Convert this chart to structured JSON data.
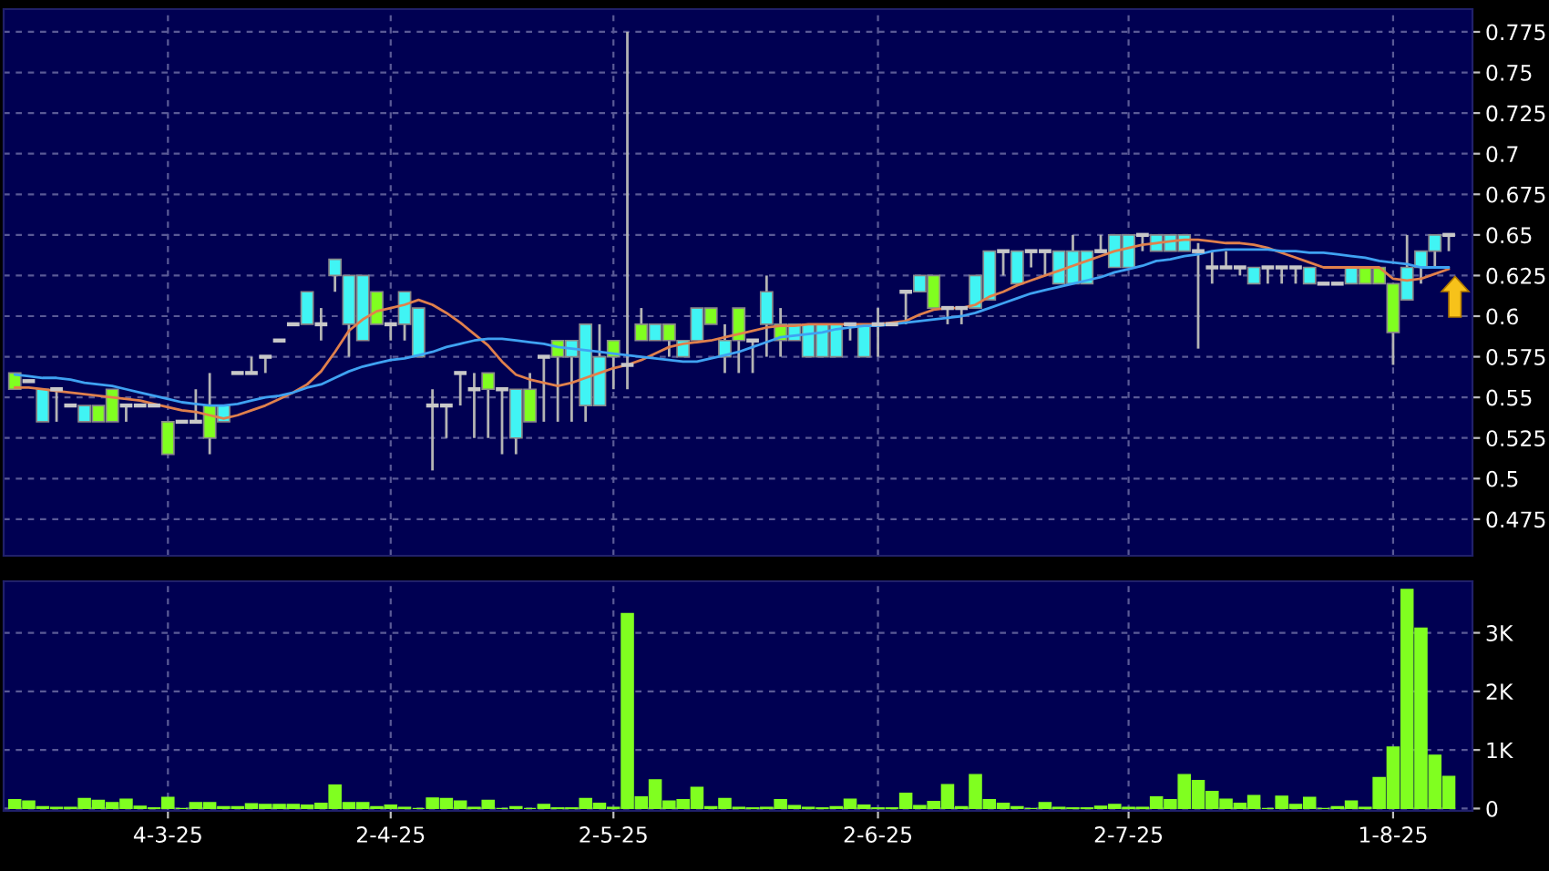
{
  "chart_data": [
    {
      "type": "candlestick",
      "categories": [
        null,
        null,
        null,
        null,
        null,
        null,
        null,
        null,
        null,
        null,
        null,
        null,
        null,
        null,
        null,
        null,
        null,
        null,
        null,
        null,
        null,
        null,
        null,
        null,
        null,
        null,
        null,
        null,
        null,
        null,
        null,
        null,
        null,
        null,
        null,
        null,
        null,
        null,
        null,
        null,
        null,
        null,
        null,
        null,
        null,
        null,
        null,
        null,
        null,
        null,
        null,
        null,
        null,
        null,
        null,
        null,
        null,
        null,
        null,
        null,
        null,
        null,
        null,
        null,
        null,
        null,
        null,
        null,
        null,
        null,
        null,
        null,
        null,
        null,
        null,
        null,
        null,
        null,
        null,
        null,
        null,
        null,
        null,
        null,
        null,
        null,
        null,
        null,
        null,
        null,
        null,
        null,
        null,
        null,
        null,
        null,
        null,
        null,
        null,
        null,
        null,
        null,
        null,
        null
      ],
      "ohlc": [
        [
          0.565,
          0.565,
          0.555,
          0.555
        ],
        [
          0.56,
          0.56,
          0.56,
          0.56
        ],
        [
          0.535,
          0.555,
          0.535,
          0.555
        ],
        [
          0.555,
          0.555,
          0.535,
          0.555
        ],
        [
          0.545,
          0.545,
          0.545,
          0.545
        ],
        [
          0.535,
          0.545,
          0.535,
          0.545
        ],
        [
          0.545,
          0.545,
          0.535,
          0.535
        ],
        [
          0.555,
          0.555,
          0.535,
          0.535
        ],
        [
          0.545,
          0.545,
          0.535,
          0.545
        ],
        [
          0.545,
          0.545,
          0.545,
          0.545
        ],
        [
          0.545,
          0.545,
          0.545,
          0.545
        ],
        [
          0.535,
          0.535,
          0.515,
          0.515
        ],
        [
          0.535,
          0.535,
          0.535,
          0.535
        ],
        [
          0.535,
          0.555,
          0.535,
          0.535
        ],
        [
          0.545,
          0.565,
          0.515,
          0.525
        ],
        [
          0.535,
          0.545,
          0.535,
          0.545
        ],
        [
          0.565,
          0.565,
          0.565,
          0.565
        ],
        [
          0.565,
          0.575,
          0.565,
          0.565
        ],
        [
          0.575,
          0.575,
          0.565,
          0.575
        ],
        [
          0.585,
          0.585,
          0.585,
          0.585
        ],
        [
          0.595,
          0.595,
          0.595,
          0.595
        ],
        [
          0.595,
          0.615,
          0.595,
          0.615
        ],
        [
          0.595,
          0.605,
          0.585,
          0.595
        ],
        [
          0.625,
          0.635,
          0.615,
          0.635
        ],
        [
          0.595,
          0.625,
          0.575,
          0.625
        ],
        [
          0.585,
          0.625,
          0.585,
          0.625
        ],
        [
          0.615,
          0.615,
          0.595,
          0.595
        ],
        [
          0.595,
          0.595,
          0.585,
          0.595
        ],
        [
          0.595,
          0.615,
          0.585,
          0.615
        ],
        [
          0.575,
          0.605,
          0.575,
          0.605
        ],
        [
          0.545,
          0.555,
          0.505,
          0.545
        ],
        [
          0.545,
          0.545,
          0.525,
          0.545
        ],
        [
          0.565,
          0.565,
          0.545,
          0.565
        ],
        [
          0.555,
          0.565,
          0.525,
          0.555
        ],
        [
          0.565,
          0.565,
          0.525,
          0.555
        ],
        [
          0.555,
          0.555,
          0.515,
          0.555
        ],
        [
          0.525,
          0.555,
          0.515,
          0.555
        ],
        [
          0.555,
          0.565,
          0.535,
          0.535
        ],
        [
          0.575,
          0.575,
          0.535,
          0.575
        ],
        [
          0.585,
          0.585,
          0.535,
          0.575
        ],
        [
          0.575,
          0.585,
          0.535,
          0.585
        ],
        [
          0.545,
          0.595,
          0.535,
          0.595
        ],
        [
          0.545,
          0.595,
          0.545,
          0.575
        ],
        [
          0.585,
          0.585,
          0.555,
          0.575
        ],
        [
          0.57,
          0.775,
          0.555,
          0.57
        ],
        [
          0.595,
          0.605,
          0.585,
          0.585
        ],
        [
          0.585,
          0.595,
          0.585,
          0.595
        ],
        [
          0.595,
          0.595,
          0.575,
          0.585
        ],
        [
          0.575,
          0.585,
          0.575,
          0.585
        ],
        [
          0.585,
          0.605,
          0.585,
          0.605
        ],
        [
          0.605,
          0.605,
          0.595,
          0.595
        ],
        [
          0.575,
          0.595,
          0.565,
          0.585
        ],
        [
          0.605,
          0.605,
          0.565,
          0.585
        ],
        [
          0.585,
          0.585,
          0.565,
          0.585
        ],
        [
          0.595,
          0.625,
          0.575,
          0.615
        ],
        [
          0.595,
          0.605,
          0.575,
          0.585
        ],
        [
          0.585,
          0.595,
          0.585,
          0.595
        ],
        [
          0.575,
          0.595,
          0.575,
          0.595
        ],
        [
          0.575,
          0.595,
          0.575,
          0.595
        ],
        [
          0.575,
          0.595,
          0.575,
          0.595
        ],
        [
          0.595,
          0.595,
          0.585,
          0.595
        ],
        [
          0.575,
          0.595,
          0.575,
          0.595
        ],
        [
          0.595,
          0.605,
          0.575,
          0.595
        ],
        [
          0.595,
          0.595,
          0.595,
          0.595
        ],
        [
          0.615,
          0.615,
          0.595,
          0.615
        ],
        [
          0.615,
          0.625,
          0.615,
          0.625
        ],
        [
          0.625,
          0.625,
          0.605,
          0.605
        ],
        [
          0.605,
          0.605,
          0.595,
          0.605
        ],
        [
          0.605,
          0.605,
          0.595,
          0.605
        ],
        [
          0.605,
          0.625,
          0.605,
          0.625
        ],
        [
          0.61,
          0.64,
          0.61,
          0.64
        ],
        [
          0.64,
          0.64,
          0.625,
          0.64
        ],
        [
          0.62,
          0.64,
          0.62,
          0.64
        ],
        [
          0.64,
          0.64,
          0.63,
          0.64
        ],
        [
          0.64,
          0.64,
          0.625,
          0.64
        ],
        [
          0.62,
          0.64,
          0.62,
          0.64
        ],
        [
          0.62,
          0.65,
          0.62,
          0.64
        ],
        [
          0.62,
          0.64,
          0.62,
          0.64
        ],
        [
          0.64,
          0.65,
          0.64,
          0.64
        ],
        [
          0.63,
          0.65,
          0.63,
          0.65
        ],
        [
          0.63,
          0.65,
          0.63,
          0.65
        ],
        [
          0.65,
          0.65,
          0.64,
          0.65
        ],
        [
          0.64,
          0.65,
          0.64,
          0.65
        ],
        [
          0.64,
          0.65,
          0.64,
          0.65
        ],
        [
          0.64,
          0.65,
          0.64,
          0.65
        ],
        [
          0.64,
          0.645,
          0.58,
          0.64
        ],
        [
          0.63,
          0.64,
          0.62,
          0.63
        ],
        [
          0.63,
          0.64,
          0.63,
          0.63
        ],
        [
          0.63,
          0.63,
          0.625,
          0.63
        ],
        [
          0.62,
          0.63,
          0.62,
          0.63
        ],
        [
          0.63,
          0.63,
          0.62,
          0.63
        ],
        [
          0.63,
          0.63,
          0.62,
          0.63
        ],
        [
          0.63,
          0.63,
          0.62,
          0.63
        ],
        [
          0.62,
          0.63,
          0.62,
          0.63
        ],
        [
          0.62,
          0.62,
          0.62,
          0.62
        ],
        [
          0.62,
          0.62,
          0.62,
          0.62
        ],
        [
          0.62,
          0.63,
          0.62,
          0.63
        ],
        [
          0.63,
          0.63,
          0.62,
          0.62
        ],
        [
          0.63,
          0.63,
          0.62,
          0.62
        ],
        [
          0.62,
          0.62,
          0.57,
          0.59
        ],
        [
          0.61,
          0.65,
          0.61,
          0.63
        ],
        [
          0.63,
          0.64,
          0.62,
          0.64
        ],
        [
          0.64,
          0.65,
          0.63,
          0.65
        ],
        [
          0.65,
          0.65,
          0.64,
          0.65
        ]
      ],
      "colors": [
        "#80ff20",
        "#c8c8c8",
        "#40f4f4",
        "#c8c8c8",
        "#c8c8c8",
        "#40f4f4",
        "#80ff20",
        "#80ff20",
        "#c8c8c8",
        "#c8c8c8",
        "#c8c8c8",
        "#80ff20",
        "#c8c8c8",
        "#c8c8c8",
        "#80ff20",
        "#40f4f4",
        "#c8c8c8",
        "#c8c8c8",
        "#c8c8c8",
        "#c8c8c8",
        "#c8c8c8",
        "#40f4f4",
        "#c8c8c8",
        "#40f4f4",
        "#40f4f4",
        "#40f4f4",
        "#80ff20",
        "#c8c8c8",
        "#40f4f4",
        "#40f4f4",
        "#c8c8c8",
        "#c8c8c8",
        "#c8c8c8",
        "#c8c8c8",
        "#80ff20",
        "#c8c8c8",
        "#40f4f4",
        "#80ff20",
        "#c8c8c8",
        "#80ff20",
        "#40f4f4",
        "#40f4f4",
        "#40f4f4",
        "#80ff20",
        "#c8c8c8",
        "#80ff20",
        "#40f4f4",
        "#80ff20",
        "#40f4f4",
        "#40f4f4",
        "#80ff20",
        "#40f4f4",
        "#80ff20",
        "#c8c8c8",
        "#40f4f4",
        "#80ff20",
        "#40f4f4",
        "#40f4f4",
        "#40f4f4",
        "#40f4f4",
        "#c8c8c8",
        "#40f4f4",
        "#c8c8c8",
        "#c8c8c8",
        "#c8c8c8",
        "#40f4f4",
        "#80ff20",
        "#c8c8c8",
        "#c8c8c8",
        "#40f4f4",
        "#40f4f4",
        "#c8c8c8",
        "#40f4f4",
        "#c8c8c8",
        "#c8c8c8",
        "#40f4f4",
        "#40f4f4",
        "#40f4f4",
        "#c8c8c8",
        "#40f4f4",
        "#40f4f4",
        "#c8c8c8",
        "#40f4f4",
        "#40f4f4",
        "#40f4f4",
        "#c8c8c8",
        "#c8c8c8",
        "#c8c8c8",
        "#c8c8c8",
        "#40f4f4",
        "#c8c8c8",
        "#c8c8c8",
        "#c8c8c8",
        "#40f4f4",
        "#c8c8c8",
        "#c8c8c8",
        "#40f4f4",
        "#80ff20",
        "#80ff20",
        "#80ff20",
        "#40f4f4",
        "#40f4f4",
        "#40f4f4",
        "#c8c8c8"
      ],
      "series": [
        {
          "type": "line",
          "color": "#e0804c",
          "values": [
            0.556,
            0.556,
            0.555,
            0.554,
            0.553,
            0.552,
            0.551,
            0.55,
            0.549,
            0.548,
            0.546,
            0.544,
            0.542,
            0.541,
            0.539,
            0.537,
            0.539,
            0.542,
            0.545,
            0.549,
            0.553,
            0.558,
            0.566,
            0.578,
            0.591,
            0.598,
            0.603,
            0.605,
            0.607,
            0.61,
            0.607,
            0.602,
            0.596,
            0.589,
            0.582,
            0.572,
            0.564,
            0.561,
            0.559,
            0.557,
            0.559,
            0.562,
            0.565,
            0.568,
            0.57,
            0.573,
            0.577,
            0.581,
            0.583,
            0.584,
            0.585,
            0.587,
            0.589,
            0.591,
            0.593,
            0.594,
            0.594,
            0.595,
            0.595,
            0.595,
            0.595,
            0.595,
            0.595,
            0.596,
            0.597,
            0.601,
            0.604,
            0.605,
            0.605,
            0.607,
            0.612,
            0.615,
            0.619,
            0.622,
            0.625,
            0.628,
            0.631,
            0.634,
            0.637,
            0.64,
            0.642,
            0.644,
            0.645,
            0.646,
            0.647,
            0.647,
            0.646,
            0.645,
            0.645,
            0.644,
            0.642,
            0.639,
            0.636,
            0.633,
            0.63,
            0.63,
            0.63,
            0.63,
            0.63,
            0.623,
            0.622,
            0.623,
            0.626,
            0.629
          ]
        },
        {
          "type": "line",
          "color": "#3fa2f2",
          "values": [
            0.564,
            0.563,
            0.562,
            0.562,
            0.561,
            0.559,
            0.558,
            0.557,
            0.555,
            0.553,
            0.551,
            0.549,
            0.547,
            0.546,
            0.545,
            0.545,
            0.546,
            0.548,
            0.55,
            0.551,
            0.553,
            0.556,
            0.558,
            0.562,
            0.566,
            0.569,
            0.571,
            0.573,
            0.574,
            0.576,
            0.578,
            0.581,
            0.583,
            0.585,
            0.586,
            0.586,
            0.585,
            0.584,
            0.583,
            0.581,
            0.58,
            0.579,
            0.578,
            0.577,
            0.576,
            0.575,
            0.574,
            0.573,
            0.572,
            0.572,
            0.574,
            0.576,
            0.578,
            0.581,
            0.584,
            0.587,
            0.588,
            0.589,
            0.59,
            0.592,
            0.593,
            0.594,
            0.594,
            0.595,
            0.596,
            0.597,
            0.598,
            0.599,
            0.6,
            0.602,
            0.605,
            0.608,
            0.611,
            0.614,
            0.616,
            0.618,
            0.62,
            0.622,
            0.624,
            0.627,
            0.629,
            0.631,
            0.634,
            0.635,
            0.637,
            0.638,
            0.64,
            0.641,
            0.641,
            0.641,
            0.641,
            0.64,
            0.64,
            0.639,
            0.639,
            0.638,
            0.637,
            0.636,
            0.634,
            0.633,
            0.632,
            0.63,
            0.63,
            0.63
          ]
        }
      ],
      "ylim": [
        0.4525,
        0.789
      ],
      "yticks": [
        0.475,
        0.5,
        0.525,
        0.55,
        0.575,
        0.6,
        0.625,
        0.65,
        0.675,
        0.7,
        0.725,
        0.75,
        0.775
      ],
      "grid": true,
      "tick_labels": "y"
    },
    {
      "type": "bar",
      "categories": [
        null,
        null,
        null,
        null,
        null,
        null,
        null,
        null,
        null,
        null,
        null,
        "4-3-25",
        null,
        null,
        null,
        null,
        null,
        null,
        null,
        null,
        null,
        null,
        null,
        null,
        null,
        null,
        null,
        "2-4-25",
        null,
        null,
        null,
        null,
        null,
        null,
        null,
        null,
        null,
        null,
        null,
        null,
        null,
        null,
        null,
        "2-5-25",
        null,
        null,
        null,
        null,
        null,
        null,
        null,
        null,
        null,
        null,
        null,
        null,
        null,
        null,
        null,
        null,
        null,
        null,
        "2-6-25",
        null,
        null,
        null,
        null,
        null,
        null,
        null,
        null,
        null,
        null,
        null,
        null,
        null,
        null,
        null,
        null,
        null,
        "2-7-25",
        null,
        null,
        null,
        null,
        null,
        null,
        null,
        null,
        null,
        null,
        null,
        null,
        null,
        null,
        null,
        null,
        null,
        null,
        "1-8-25",
        null,
        null,
        null,
        null
      ],
      "values": [
        150,
        130,
        30,
        20,
        20,
        170,
        140,
        100,
        160,
        40,
        10,
        190,
        0,
        100,
        100,
        30,
        30,
        80,
        70,
        70,
        70,
        60,
        90,
        400,
        100,
        100,
        30,
        60,
        20,
        0,
        180,
        170,
        130,
        20,
        140,
        0,
        30,
        0,
        70,
        10,
        10,
        170,
        90,
        20,
        3330,
        200,
        490,
        130,
        150,
        360,
        30,
        170,
        20,
        10,
        20,
        150,
        50,
        20,
        10,
        30,
        160,
        60,
        10,
        10,
        260,
        50,
        120,
        410,
        30,
        580,
        150,
        90,
        30,
        0,
        100,
        20,
        10,
        10,
        40,
        70,
        20,
        20,
        200,
        150,
        580,
        480,
        290,
        160,
        90,
        220,
        0,
        210,
        70,
        190,
        0,
        30,
        130,
        20,
        530,
        1050,
        3740,
        3080,
        910,
        550
      ],
      "color": "#80ff20",
      "ylim": [
        -40,
        3880
      ],
      "yticks": [
        0,
        {
          "value": 1000,
          "label": "1K"
        },
        {
          "value": 2000,
          "label": "2K"
        },
        {
          "value": 3000,
          "label": "3K"
        }
      ],
      "grid": true
    }
  ]
}
